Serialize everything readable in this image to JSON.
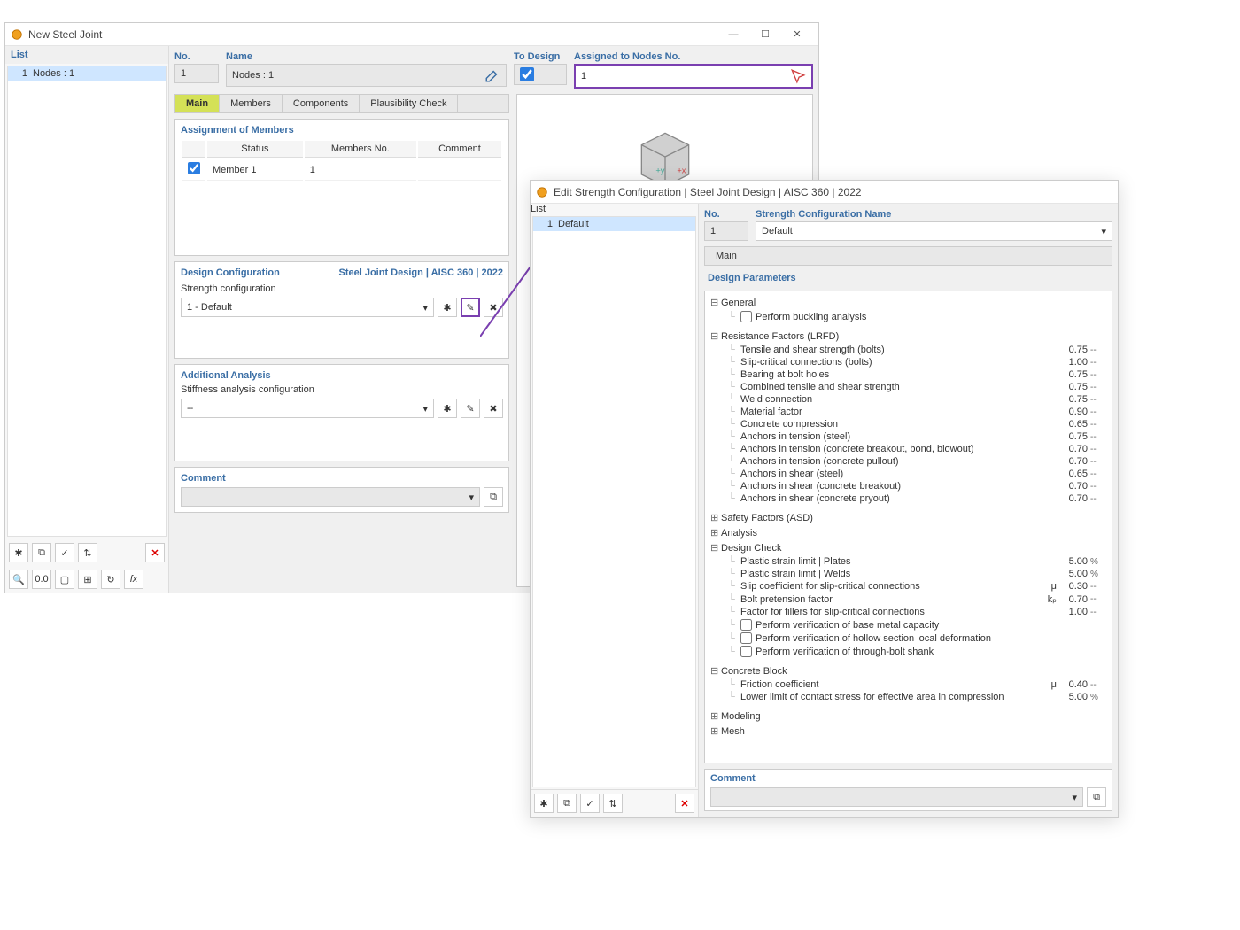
{
  "window1": {
    "title": "New Steel Joint",
    "list_header": "List",
    "list_items": [
      {
        "num": "1",
        "label": "Nodes : 1"
      }
    ],
    "header": {
      "no_label": "No.",
      "no_value": "1",
      "name_label": "Name",
      "name_value": "Nodes : 1",
      "todesign_label": "To Design",
      "todesign_checked": true,
      "assigned_label": "Assigned to Nodes No.",
      "assigned_value": "1"
    },
    "tabs": [
      "Main",
      "Members",
      "Components",
      "Plausibility Check"
    ],
    "active_tab": 0,
    "assignment": {
      "title": "Assignment of Members",
      "cols": [
        "Status",
        "Members No.",
        "Comment"
      ],
      "rows": [
        {
          "status": "Member 1",
          "membersNo": "1",
          "comment": ""
        }
      ]
    },
    "design_config": {
      "label": "Design Configuration",
      "right": "Steel Joint Design | AISC 360 | 2022",
      "strength_label": "Strength configuration",
      "strength_value": "1 - Default"
    },
    "additional": {
      "title": "Additional Analysis",
      "stiffness_label": "Stiffness analysis configuration",
      "stiffness_value": "--"
    },
    "comment_label": "Comment"
  },
  "window2": {
    "title": "Edit Strength Configuration | Steel Joint Design | AISC 360 | 2022",
    "list_header": "List",
    "list_items": [
      {
        "num": "1",
        "label": "Default"
      }
    ],
    "header": {
      "no_label": "No.",
      "no_value": "1",
      "name_label": "Strength Configuration Name",
      "name_value": "Default"
    },
    "main_tab": "Main",
    "params_header": "Design Parameters",
    "groups": {
      "general": {
        "label": "General",
        "items": [
          {
            "type": "check",
            "label": "Perform buckling analysis",
            "val": "",
            "unit": ""
          }
        ]
      },
      "resistance": {
        "label": "Resistance Factors (LRFD)",
        "items": [
          {
            "label": "Tensile and shear strength (bolts)",
            "val": "0.75",
            "unit": "--"
          },
          {
            "label": "Slip-critical connections (bolts)",
            "val": "1.00",
            "unit": "--"
          },
          {
            "label": "Bearing at bolt holes",
            "val": "0.75",
            "unit": "--"
          },
          {
            "label": "Combined tensile and shear strength",
            "val": "0.75",
            "unit": "--"
          },
          {
            "label": "Weld connection",
            "val": "0.75",
            "unit": "--"
          },
          {
            "label": "Material factor",
            "val": "0.90",
            "unit": "--"
          },
          {
            "label": "Concrete compression",
            "val": "0.65",
            "unit": "--"
          },
          {
            "label": "Anchors in tension (steel)",
            "val": "0.75",
            "unit": "--"
          },
          {
            "label": "Anchors in tension (concrete breakout, bond, blowout)",
            "val": "0.70",
            "unit": "--"
          },
          {
            "label": "Anchors in tension (concrete pullout)",
            "val": "0.70",
            "unit": "--"
          },
          {
            "label": "Anchors in shear (steel)",
            "val": "0.65",
            "unit": "--"
          },
          {
            "label": "Anchors in shear (concrete breakout)",
            "val": "0.70",
            "unit": "--"
          },
          {
            "label": "Anchors in shear (concrete pryout)",
            "val": "0.70",
            "unit": "--"
          }
        ]
      },
      "safety": {
        "label": "Safety Factors (ASD)",
        "collapsed": true
      },
      "analysis": {
        "label": "Analysis",
        "collapsed": true
      },
      "designcheck": {
        "label": "Design Check",
        "items": [
          {
            "label": "Plastic strain limit | Plates",
            "val": "5.00",
            "unit": "%"
          },
          {
            "label": "Plastic strain limit | Welds",
            "val": "5.00",
            "unit": "%"
          },
          {
            "label": "Slip coefficient for slip-critical connections",
            "sym": "μ",
            "val": "0.30",
            "unit": "--"
          },
          {
            "label": "Bolt pretension factor",
            "sym": "kₚ",
            "val": "0.70",
            "unit": "--"
          },
          {
            "label": "Factor for fillers for slip-critical connections",
            "val": "1.00",
            "unit": "--"
          },
          {
            "type": "check",
            "label": "Perform verification of base metal capacity"
          },
          {
            "type": "check",
            "label": "Perform verification of hollow section local deformation"
          },
          {
            "type": "check",
            "label": "Perform verification of through-bolt shank"
          }
        ]
      },
      "concrete": {
        "label": "Concrete Block",
        "items": [
          {
            "label": "Friction coefficient",
            "sym": "μ",
            "val": "0.40",
            "unit": "--"
          },
          {
            "label": "Lower limit of contact stress for effective area in compression",
            "val": "5.00",
            "unit": "%"
          }
        ]
      },
      "modeling": {
        "label": "Modeling",
        "collapsed": true
      },
      "mesh": {
        "label": "Mesh",
        "collapsed": true
      }
    },
    "comment_label": "Comment"
  },
  "colors": {
    "accent": "#3a6ea5",
    "purple": "#7a3fb0",
    "tab_active": "#d4e157",
    "selection": "#cfe6ff"
  }
}
